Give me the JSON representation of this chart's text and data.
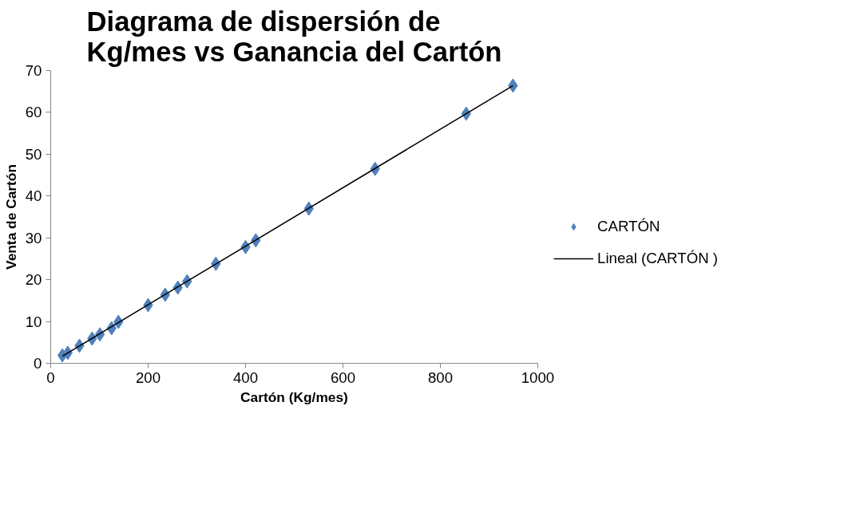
{
  "chart_data": {
    "type": "scatter",
    "title": "Diagrama de dispersión de Kg/mes vs Ganancia del Cartón",
    "xlabel": "Cartón (Kg/mes)",
    "ylabel": "Venta de Cartón",
    "xlim": [
      0,
      1000
    ],
    "xticks": [
      0,
      200,
      400,
      600,
      800,
      1000
    ],
    "ylim": [
      0,
      70
    ],
    "yticks": [
      0,
      10,
      20,
      30,
      40,
      50,
      60,
      70
    ],
    "grid": false,
    "legend": "right",
    "series": [
      {
        "name": "CARTÓN",
        "marker": "diamond",
        "color": "#4f81bd",
        "x": [
          24,
          35,
          59,
          85,
          101,
          125,
          139,
          200,
          235,
          261,
          280,
          339,
          400,
          421,
          530,
          666,
          853,
          949
        ],
        "values": [
          1.9,
          2.5,
          4.2,
          5.9,
          6.9,
          8.4,
          9.9,
          13.9,
          16.4,
          18.1,
          19.6,
          23.8,
          27.8,
          29.4,
          37.0,
          46.5,
          59.7,
          66.4
        ]
      },
      {
        "name": "Lineal (CARTÓN )",
        "type": "line",
        "color": "#000000",
        "line_style": "solid",
        "x": [
          24,
          949
        ],
        "values": [
          1.7,
          66.4
        ]
      }
    ]
  }
}
